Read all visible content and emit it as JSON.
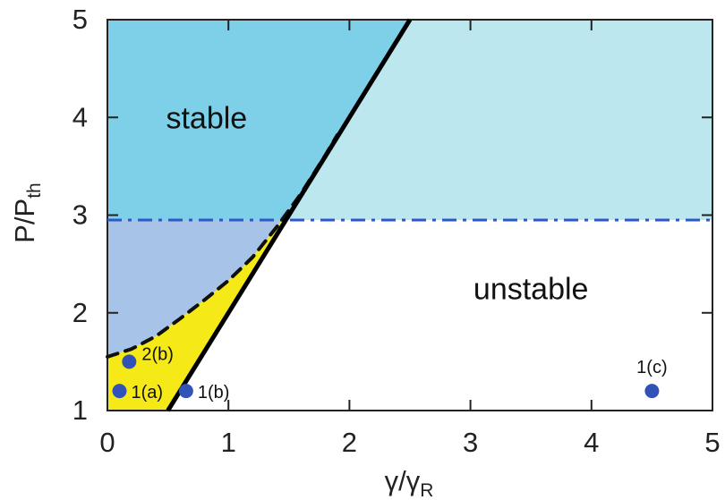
{
  "chart_data": {
    "type": "scatter",
    "title": "",
    "xlabel": {
      "main": "γ/γ",
      "sub": "R"
    },
    "ylabel": {
      "main": "P/P",
      "sub": "th"
    },
    "xlim": [
      0,
      5
    ],
    "ylim": [
      1,
      5
    ],
    "grid": false,
    "x_ticks": [
      0,
      1,
      2,
      3,
      4,
      5
    ],
    "y_ticks": [
      1,
      2,
      3,
      4,
      5
    ],
    "x_tick_labels": [
      "0",
      "1",
      "2",
      "3",
      "4",
      "5"
    ],
    "y_tick_labels": [
      "1",
      "2",
      "3",
      "4",
      "5"
    ],
    "region_labels": [
      {
        "text": "stable",
        "x": 0.82,
        "y": 4.0
      },
      {
        "text": "unstable",
        "x": 3.5,
        "y": 2.25
      }
    ],
    "colors": {
      "stable_region": "#7ecfe8",
      "upper_light_region": "#bde7ee",
      "lower_left_region": "#a7c3e8",
      "yellow_region": "#f5ea17",
      "boundary_line": "#000000",
      "dashed_boundary": "#111111",
      "threshold_line": "#2d59c6",
      "point_color": "#3153b8"
    },
    "boundaries": {
      "solid_line": [
        [
          0.5,
          1.0
        ],
        [
          2.5,
          5.0
        ]
      ],
      "threshold_y": 2.95,
      "dashed_curve": [
        [
          0.0,
          1.55
        ],
        [
          0.2,
          1.63
        ],
        [
          0.4,
          1.76
        ],
        [
          0.6,
          1.94
        ],
        [
          0.8,
          2.13
        ],
        [
          1.0,
          2.33
        ],
        [
          1.2,
          2.57
        ],
        [
          1.4,
          2.88
        ],
        [
          1.6,
          3.22
        ],
        [
          1.8,
          3.61
        ],
        [
          1.9,
          3.82
        ]
      ]
    },
    "points": [
      {
        "label": "2(b)",
        "x": 0.18,
        "y": 1.5
      },
      {
        "label": "1(a)",
        "x": 0.1,
        "y": 1.2
      },
      {
        "label": "1(b)",
        "x": 0.65,
        "y": 1.2
      },
      {
        "label": "1(c)",
        "x": 4.5,
        "y": 1.2
      }
    ]
  }
}
